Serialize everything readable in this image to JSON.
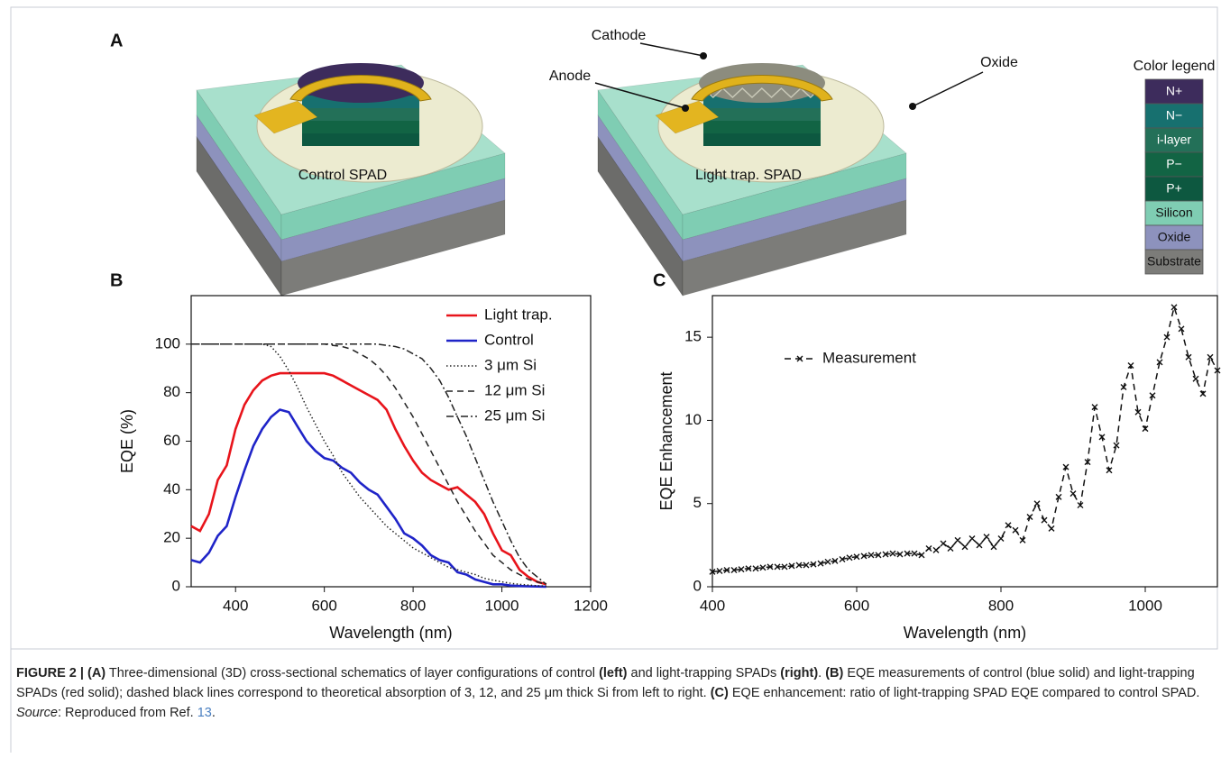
{
  "panel_a": {
    "panel": "A",
    "left_label": "Control SPAD",
    "right_label": "Light trap. SPAD",
    "callouts": [
      "Cathode",
      "Anode",
      "Oxide"
    ],
    "color_legend": {
      "title": "Color legend",
      "items": [
        {
          "name": "N+",
          "color": "#3d2c5c"
        },
        {
          "name": "N−",
          "color": "#17706f"
        },
        {
          "name": "i-layer",
          "color": "#237058"
        },
        {
          "name": "P−",
          "color": "#126444"
        },
        {
          "name": "P+",
          "color": "#0d5840"
        },
        {
          "name": "Silicon",
          "color": "#7fcdb3"
        },
        {
          "name": "Oxide",
          "color": "#8d92bd"
        },
        {
          "name": "Substrate",
          "color": "#7c7c79"
        }
      ]
    }
  },
  "chart_data": [
    {
      "type": "line",
      "panel": "B",
      "x_label": "Wavelength (nm)",
      "y_label": "EQE (%)",
      "xlim": [
        300,
        1200
      ],
      "ylim": [
        0,
        120
      ],
      "xticks": [
        400,
        600,
        800,
        1000,
        1200
      ],
      "yticks": [
        0,
        20,
        40,
        60,
        80,
        100
      ],
      "legend": "top-right",
      "x": [
        300,
        320,
        340,
        360,
        380,
        400,
        420,
        440,
        460,
        480,
        500,
        520,
        540,
        560,
        580,
        600,
        620,
        640,
        660,
        680,
        700,
        720,
        740,
        760,
        780,
        800,
        820,
        840,
        860,
        880,
        900,
        920,
        940,
        960,
        980,
        1000,
        1020,
        1040,
        1060,
        1080,
        1100
      ],
      "series": [
        {
          "name": "Light trap.",
          "color": "#e8141b",
          "dash": "solid",
          "values": [
            25,
            23,
            30,
            44,
            50,
            65,
            75,
            81,
            85,
            87,
            88,
            88,
            88,
            88,
            88,
            88,
            87,
            85,
            83,
            81,
            79,
            77,
            73,
            65,
            58,
            52,
            47,
            44,
            42,
            40,
            41,
            38,
            35,
            30,
            22,
            15,
            13,
            7,
            4,
            2,
            1
          ]
        },
        {
          "name": "Control",
          "color": "#1f24c8",
          "dash": "solid",
          "values": [
            11,
            10,
            14,
            21,
            25,
            37,
            48,
            58,
            65,
            70,
            73,
            72,
            66,
            60,
            56,
            53,
            52,
            49,
            47,
            43,
            40,
            38,
            33,
            28,
            22,
            20,
            17,
            13,
            11,
            10,
            6,
            5,
            3,
            2,
            1,
            1,
            0.5,
            0.3,
            0.2,
            0.1,
            0
          ]
        },
        {
          "name": "3 μm Si",
          "color": "#222222",
          "dash": "dotted",
          "values": [
            100,
            100,
            100,
            100,
            100,
            100,
            100,
            100,
            100,
            99,
            95,
            89,
            82,
            74,
            67,
            60,
            54,
            47,
            42,
            37,
            33,
            29,
            25,
            22,
            19,
            16,
            14,
            12,
            10,
            8,
            7,
            6,
            5,
            3.5,
            2.7,
            2,
            1.4,
            1,
            0.7,
            0.4,
            0.3
          ]
        },
        {
          "name": "12 μm Si",
          "color": "#222222",
          "dash": "dashed",
          "values": [
            100,
            100,
            100,
            100,
            100,
            100,
            100,
            100,
            100,
            100,
            100,
            100,
            100,
            100,
            100,
            100,
            99.5,
            99,
            98,
            96,
            94,
            91,
            87,
            82,
            76,
            70,
            63,
            56,
            49,
            42,
            35,
            29,
            23,
            18,
            13,
            10,
            7,
            5,
            3,
            2,
            1
          ]
        },
        {
          "name": "25 μm Si",
          "color": "#222222",
          "dash": "dashdot",
          "values": [
            100,
            100,
            100,
            100,
            100,
            100,
            100,
            100,
            100,
            100,
            100,
            100,
            100,
            100,
            100,
            100,
            100,
            100,
            100,
            100,
            100,
            100,
            99.5,
            99,
            98,
            96,
            94,
            90,
            85,
            78,
            70,
            62,
            53,
            44,
            35,
            27,
            19,
            12,
            7,
            4,
            1
          ]
        }
      ]
    },
    {
      "type": "line",
      "panel": "C",
      "x_label": "Wavelength (nm)",
      "y_label": "EQE Enhancement",
      "xlim": [
        400,
        1100
      ],
      "ylim": [
        0,
        17.5
      ],
      "xticks": [
        400,
        600,
        800,
        1000
      ],
      "yticks": [
        0,
        5,
        10,
        15
      ],
      "legend": "top-left",
      "x": [
        400,
        410,
        420,
        430,
        440,
        450,
        460,
        470,
        480,
        490,
        500,
        510,
        520,
        530,
        540,
        550,
        560,
        570,
        580,
        590,
        600,
        610,
        620,
        630,
        640,
        650,
        660,
        670,
        680,
        690,
        700,
        710,
        720,
        730,
        740,
        750,
        760,
        770,
        780,
        790,
        800,
        810,
        820,
        830,
        840,
        850,
        860,
        870,
        880,
        890,
        900,
        910,
        920,
        930,
        940,
        950,
        960,
        970,
        980,
        990,
        1000,
        1010,
        1020,
        1030,
        1040,
        1050,
        1060,
        1070,
        1080,
        1090,
        1100
      ],
      "series": [
        {
          "name": "Measurement",
          "color": "#111111",
          "dash": "dashed",
          "marker": "x",
          "values": [
            0.9,
            0.95,
            1.0,
            1.0,
            1.05,
            1.1,
            1.1,
            1.15,
            1.2,
            1.2,
            1.2,
            1.25,
            1.3,
            1.3,
            1.35,
            1.4,
            1.5,
            1.55,
            1.65,
            1.75,
            1.8,
            1.85,
            1.9,
            1.9,
            1.95,
            2.0,
            1.95,
            2.0,
            2.0,
            1.9,
            2.3,
            2.2,
            2.6,
            2.3,
            2.8,
            2.4,
            2.9,
            2.5,
            3.0,
            2.4,
            2.9,
            3.7,
            3.4,
            2.8,
            4.2,
            5.0,
            4.0,
            3.5,
            5.4,
            7.2,
            5.6,
            4.9,
            7.5,
            10.8,
            9.0,
            7.0,
            8.5,
            12.0,
            13.3,
            10.5,
            9.5,
            11.5,
            13.5,
            15.0,
            16.8,
            15.5,
            13.8,
            12.5,
            11.6,
            13.8,
            13.0
          ]
        }
      ]
    }
  ],
  "caption": [
    {
      "text": "FIGURE 2 | (A)",
      "style": "bold"
    },
    {
      "text": " Three-dimensional (3D) cross-sectional schematics of layer configurations of control ",
      "style": "normal"
    },
    {
      "text": "(left)",
      "style": "bold"
    },
    {
      "text": " and light-trapping SPADs ",
      "style": "normal"
    },
    {
      "text": "(right)",
      "style": "bold"
    },
    {
      "text": ". ",
      "style": "normal"
    },
    {
      "text": "(B)",
      "style": "bold"
    },
    {
      "text": " EQE measurements of control (blue solid) and light-trapping SPADs (red solid); dashed black lines correspond to theoretical absorption of 3, 12, and 25 μm thick Si from left to right. ",
      "style": "normal"
    },
    {
      "text": "(C)",
      "style": "bold"
    },
    {
      "text": " EQE enhancement: ratio of light-trapping SPAD EQE compared to control SPAD. ",
      "style": "normal"
    },
    {
      "text": "Source",
      "style": "italic"
    },
    {
      "text": ": Reproduced from Ref. ",
      "style": "normal"
    },
    {
      "text": "13",
      "style": "link"
    },
    {
      "text": ".",
      "style": "normal"
    }
  ]
}
